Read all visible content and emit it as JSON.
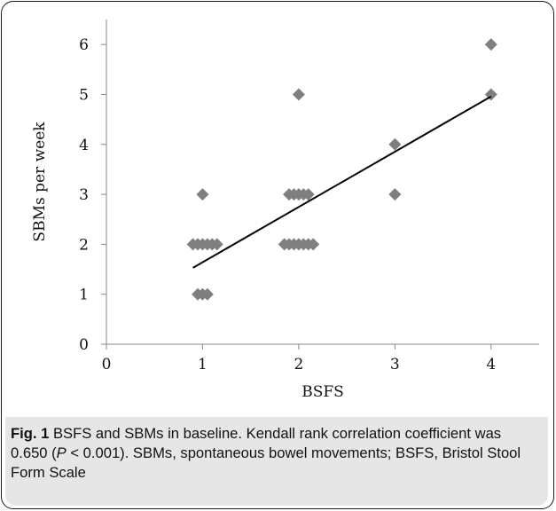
{
  "chart_data": {
    "type": "scatter",
    "xlabel": "BSFS",
    "ylabel": "SBMs per week",
    "xlim": [
      0,
      4.5
    ],
    "ylim": [
      0,
      6.5
    ],
    "xticks": [
      0,
      1,
      2,
      3,
      4
    ],
    "yticks": [
      0,
      1,
      2,
      3,
      4,
      5,
      6
    ],
    "grid": false,
    "points": [
      {
        "x": 0.9,
        "y": 2
      },
      {
        "x": 0.95,
        "y": 2
      },
      {
        "x": 1.0,
        "y": 2
      },
      {
        "x": 1.05,
        "y": 2
      },
      {
        "x": 1.1,
        "y": 2
      },
      {
        "x": 1.15,
        "y": 2
      },
      {
        "x": 1.0,
        "y": 3
      },
      {
        "x": 0.95,
        "y": 1
      },
      {
        "x": 1.0,
        "y": 1
      },
      {
        "x": 1.05,
        "y": 1
      },
      {
        "x": 1.85,
        "y": 2
      },
      {
        "x": 1.9,
        "y": 2
      },
      {
        "x": 1.95,
        "y": 2
      },
      {
        "x": 2.0,
        "y": 2
      },
      {
        "x": 2.05,
        "y": 2
      },
      {
        "x": 2.1,
        "y": 2
      },
      {
        "x": 2.15,
        "y": 2
      },
      {
        "x": 1.9,
        "y": 3
      },
      {
        "x": 1.95,
        "y": 3
      },
      {
        "x": 2.0,
        "y": 3
      },
      {
        "x": 2.05,
        "y": 3
      },
      {
        "x": 2.1,
        "y": 3
      },
      {
        "x": 2.0,
        "y": 5
      },
      {
        "x": 3.0,
        "y": 3
      },
      {
        "x": 3.0,
        "y": 4
      },
      {
        "x": 4.0,
        "y": 5
      },
      {
        "x": 4.0,
        "y": 6
      }
    ],
    "trendline": {
      "x": [
        0.9,
        4.0
      ],
      "y": [
        1.53,
        4.96
      ]
    },
    "marker_color": "#7f7f7f",
    "line_color": "#000000"
  },
  "caption": {
    "label": "Fig. 1",
    "text_1": " BSFS and SBMs in baseline. Kendall rank correlation coefficient was 0.650 (",
    "p_symbol": "P",
    "text_2": " < 0.001). SBMs, spontaneous bowel movements; BSFS, Bristol Stool Form Scale"
  }
}
